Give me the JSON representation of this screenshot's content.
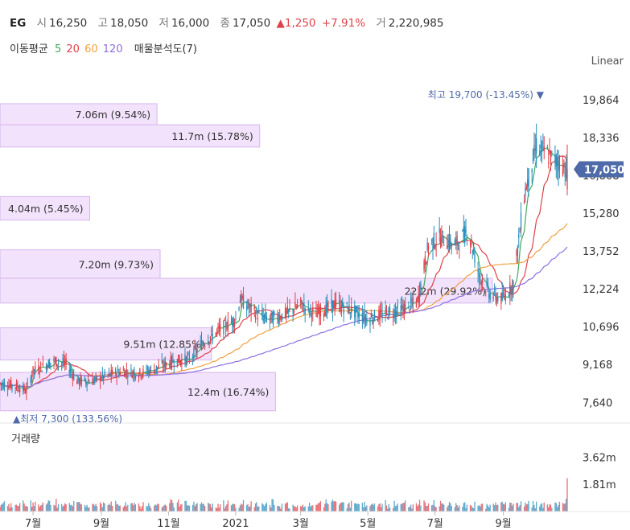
{
  "header": {
    "symbol": "EG",
    "open_label": "시",
    "open": "16,250",
    "high_label": "고",
    "high": "18,050",
    "low_label": "저",
    "low": "16,000",
    "close_label": "종",
    "close": "17,050",
    "change_arrow": "▲",
    "change": "1,250",
    "change_pct": "+7.91%",
    "volume_label": "거",
    "volume": "2,220,985"
  },
  "ma_legend": {
    "title": "이동평균",
    "periods": [
      {
        "label": "5",
        "color": "#41a85f"
      },
      {
        "label": "20",
        "color": "#e0424b"
      },
      {
        "label": "60",
        "color": "#f0a040"
      },
      {
        "label": "120",
        "color": "#8e6fe0"
      }
    ],
    "profile_label": "매물분석도(7)"
  },
  "scale_mode": "Linear",
  "colors": {
    "up": "#e0424b",
    "down": "#2a8fbd",
    "profile": "#f2e2fb",
    "profile_border": "#d7b7ee",
    "price_tag": "#4e6aa8"
  },
  "chart_data": {
    "type": "candlestick",
    "price_axis": {
      "ticks": [
        "19,864",
        "18,336",
        "16,808",
        "15,280",
        "13,752",
        "12,224",
        "10,696",
        "9,168",
        "7,640"
      ],
      "ylim": [
        7000,
        20900
      ]
    },
    "time_axis": {
      "ticks": [
        "7월",
        "9월",
        "11월",
        "2021",
        "3월",
        "5월",
        "7월",
        "9월"
      ],
      "range": [
        "2020-06-01",
        "2021-10-29"
      ]
    },
    "current_price_tag": "17,050",
    "high_marker": {
      "label": "최고",
      "value": "19,700",
      "pct": "(-13.45%)",
      "arrow": "▼"
    },
    "low_marker": {
      "label": "최저",
      "value": "7,300",
      "pct": "(133.56%)",
      "arrow": "▲"
    },
    "volume_profile": [
      {
        "label": "7.06m (9.54%)",
        "price_from": 18850,
        "price_to": 19700,
        "share": 9.54
      },
      {
        "label": "11.7m (15.78%)",
        "price_from": 17950,
        "price_to": 18850,
        "share": 15.78
      },
      {
        "label": "4.04m (5.45%)",
        "price_from": 15000,
        "price_to": 15950,
        "share": 5.45
      },
      {
        "label": "7.20m (9.73%)",
        "price_from": 12650,
        "price_to": 13800,
        "share": 9.73
      },
      {
        "label": "22.2m (29.92%)",
        "price_from": 11650,
        "price_to": 12650,
        "share": 29.92
      },
      {
        "label": "9.51m (12.85%)",
        "price_from": 9350,
        "price_to": 10650,
        "share": 12.85
      },
      {
        "label": "12.4m (16.74%)",
        "price_from": 7300,
        "price_to": 8850,
        "share": 16.74
      }
    ],
    "price_path": [
      [
        "2020-06-01",
        8400
      ],
      [
        "2020-06-15",
        8300
      ],
      [
        "2020-06-25",
        8100
      ],
      [
        "2020-07-01",
        8900
      ],
      [
        "2020-07-10",
        9100
      ],
      [
        "2020-07-20",
        9300
      ],
      [
        "2020-07-31",
        9200
      ],
      [
        "2020-08-10",
        8500
      ],
      [
        "2020-08-24",
        8500
      ],
      [
        "2020-09-05",
        8700
      ],
      [
        "2020-09-20",
        8900
      ],
      [
        "2020-10-05",
        8800
      ],
      [
        "2020-10-20",
        9000
      ],
      [
        "2020-11-05",
        9300
      ],
      [
        "2020-11-20",
        9400
      ],
      [
        "2020-12-01",
        10000
      ],
      [
        "2020-12-15",
        10500
      ],
      [
        "2021-01-01",
        11000
      ],
      [
        "2021-01-05",
        11800
      ],
      [
        "2021-01-20",
        11200
      ],
      [
        "2021-02-01",
        11000
      ],
      [
        "2021-02-15",
        11200
      ],
      [
        "2021-03-01",
        11600
      ],
      [
        "2021-03-15",
        11200
      ],
      [
        "2021-04-01",
        11600
      ],
      [
        "2021-04-15",
        11400
      ],
      [
        "2021-05-01",
        11000
      ],
      [
        "2021-05-15",
        11200
      ],
      [
        "2021-06-01",
        11400
      ],
      [
        "2021-06-15",
        11700
      ],
      [
        "2021-06-25",
        14000
      ],
      [
        "2021-07-05",
        14300
      ],
      [
        "2021-07-20",
        14000
      ],
      [
        "2021-07-31",
        14600
      ],
      [
        "2021-08-10",
        12800
      ],
      [
        "2021-08-20",
        12000
      ],
      [
        "2021-08-31",
        11800
      ],
      [
        "2021-09-10",
        12400
      ],
      [
        "2021-09-20",
        16000
      ],
      [
        "2021-10-01",
        18000
      ],
      [
        "2021-10-15",
        17500
      ],
      [
        "2021-10-29",
        17050
      ]
    ],
    "volume_axis": {
      "ticks": [
        "3.62m",
        "1.81m"
      ],
      "ylim": [
        0,
        4500000
      ]
    }
  },
  "volume_panel": {
    "title": "거래량"
  }
}
